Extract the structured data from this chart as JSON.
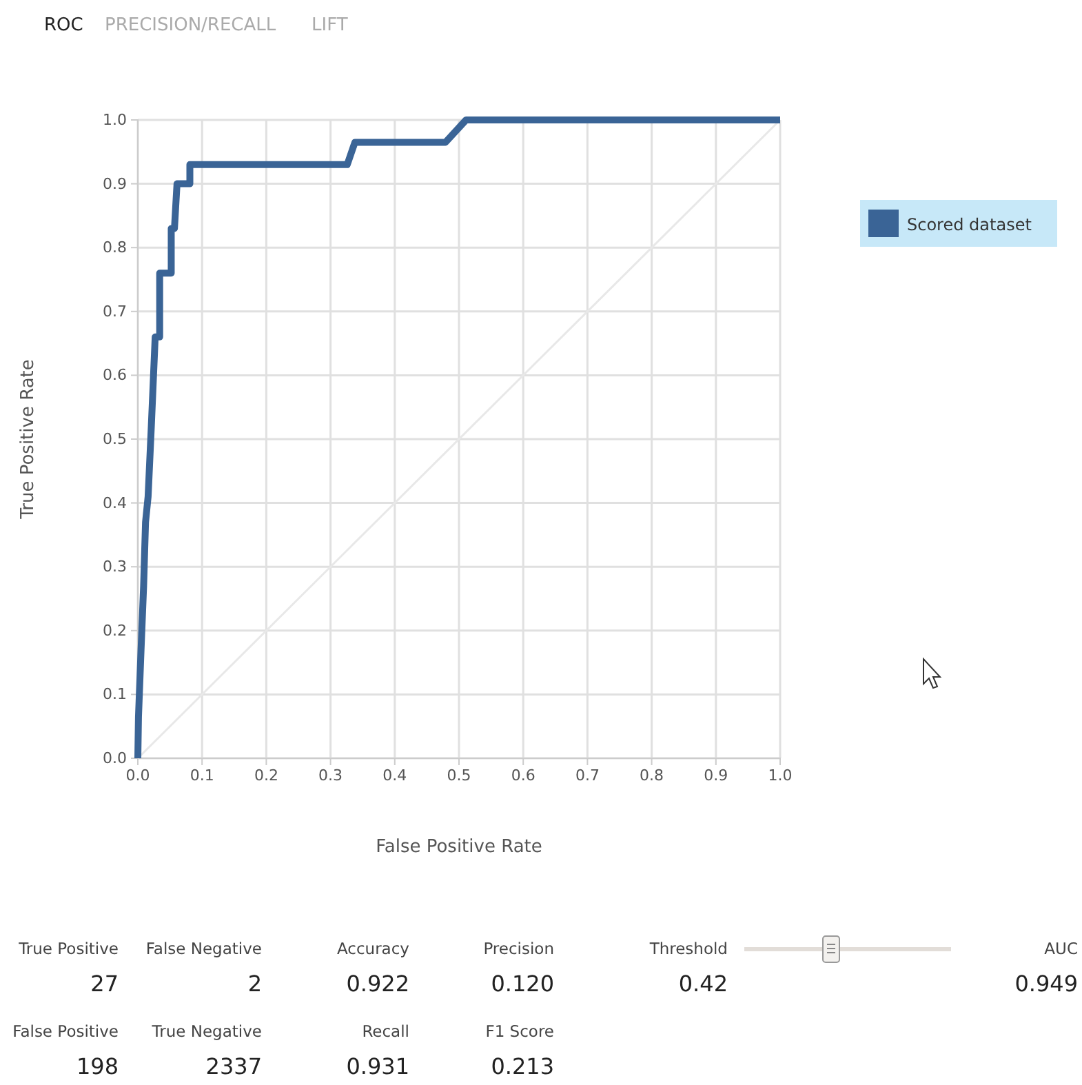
{
  "chart_data": [
    {
      "type": "line",
      "xlabel": "False Positive Rate",
      "ylabel": "True Positive Rate",
      "annotations": [
        "ROC",
        "PRECISION/RECALL",
        "LIFT"
      ],
      "series": [
        {
          "name": "Scored dataset",
          "color": "#3a6496",
          "x": [
            0,
            0.001,
            0.005,
            0.009,
            0.012,
            0.016,
            0.021,
            0.027,
            0.034,
            0.034,
            0.052,
            0.052,
            0.057,
            0.061,
            0.081,
            0.081,
            0.326,
            0.338,
            0.479,
            0.511,
            1.0
          ],
          "values": [
            0,
            0.065,
            0.17,
            0.27,
            0.37,
            0.41,
            0.52,
            0.66,
            0.66,
            0.76,
            0.76,
            0.83,
            0.83,
            0.9,
            0.9,
            0.93,
            0.93,
            0.965,
            0.965,
            1.0,
            1.0
          ]
        },
        {
          "color": "#e8e8e8",
          "x": [
            0,
            1
          ],
          "values": [
            0,
            1
          ]
        }
      ],
      "xlim": [
        0,
        1
      ],
      "ylim": [
        0,
        1
      ],
      "xticks": [
        {
          "value": 0,
          "label": "0.0"
        },
        0.1,
        0.2,
        0.3,
        0.4,
        0.5,
        0.6,
        0.7,
        0.8,
        0.9,
        {
          "value": 1,
          "label": "1.0"
        }
      ],
      "yticks": [
        {
          "value": 0,
          "label": "0.0"
        },
        0.1,
        0.2,
        0.3,
        0.4,
        0.5,
        0.6,
        0.7,
        0.8,
        0.9,
        {
          "value": 1,
          "label": "1.0"
        }
      ],
      "grid": true,
      "legend": "top right"
    },
    {
      "type": "other",
      "categories": [
        "True Positive",
        "False Negative",
        "Accuracy",
        "Precision",
        "Threshold",
        "AUC",
        "False Positive",
        "True Negative",
        "Recall",
        "F1 Score"
      ],
      "value_labels": [
        "27",
        "2",
        "0.922",
        "0.120",
        "0.42",
        "0.949",
        "198",
        "2337",
        "0.931",
        "0.213"
      ]
    }
  ]
}
